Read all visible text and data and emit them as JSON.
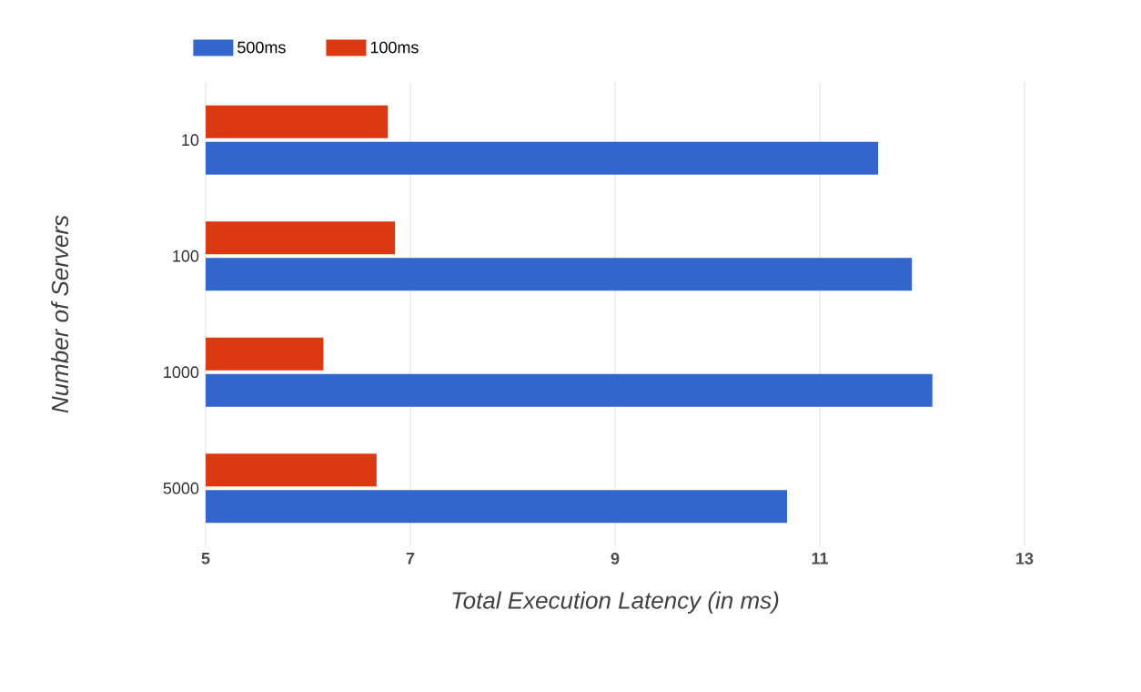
{
  "chart_data": {
    "type": "bar",
    "orientation": "horizontal",
    "xlabel": "Total Execution Latency (in ms)",
    "ylabel": "Number of Servers",
    "categories": [
      "10",
      "100",
      "1000",
      "5000"
    ],
    "series": [
      {
        "name": "500ms",
        "color": "#3366cc",
        "values": [
          11.57,
          11.9,
          12.1,
          10.68
        ]
      },
      {
        "name": "100ms",
        "color": "#dc3912",
        "values": [
          6.78,
          6.85,
          6.15,
          6.67
        ]
      }
    ],
    "xlim": [
      5,
      13
    ],
    "xticks": [
      5,
      7,
      9,
      11,
      13
    ],
    "grid": "x",
    "legend": "top left"
  }
}
